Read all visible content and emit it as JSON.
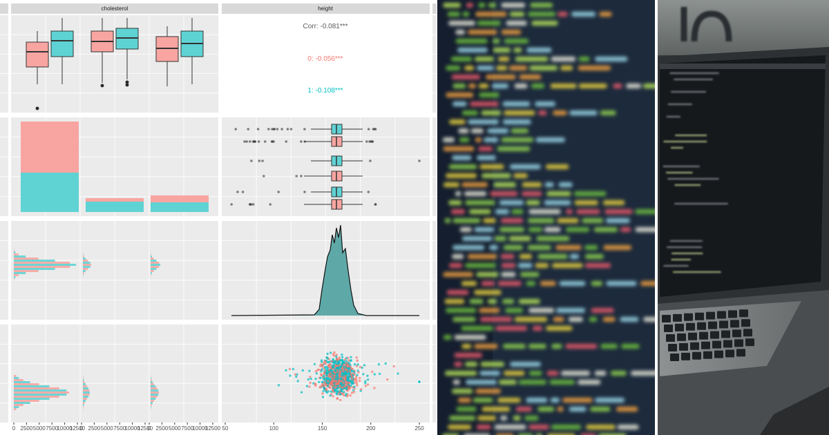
{
  "panels": {
    "column_titles": [
      "cholesterol",
      "height"
    ],
    "correlation": {
      "overall": "Corr: -0.081***",
      "group_0": "0: -0.056***",
      "group_1": "1: -0.108***"
    }
  },
  "axes": {
    "count_axis": {
      "xlim": [
        0,
        12500
      ],
      "xticks": [
        0,
        2500,
        5000,
        7500,
        10000,
        12500
      ]
    },
    "height_axis": {
      "xlim": [
        50,
        250
      ],
      "xticks": [
        50,
        100,
        150,
        200,
        250
      ]
    }
  }
}
